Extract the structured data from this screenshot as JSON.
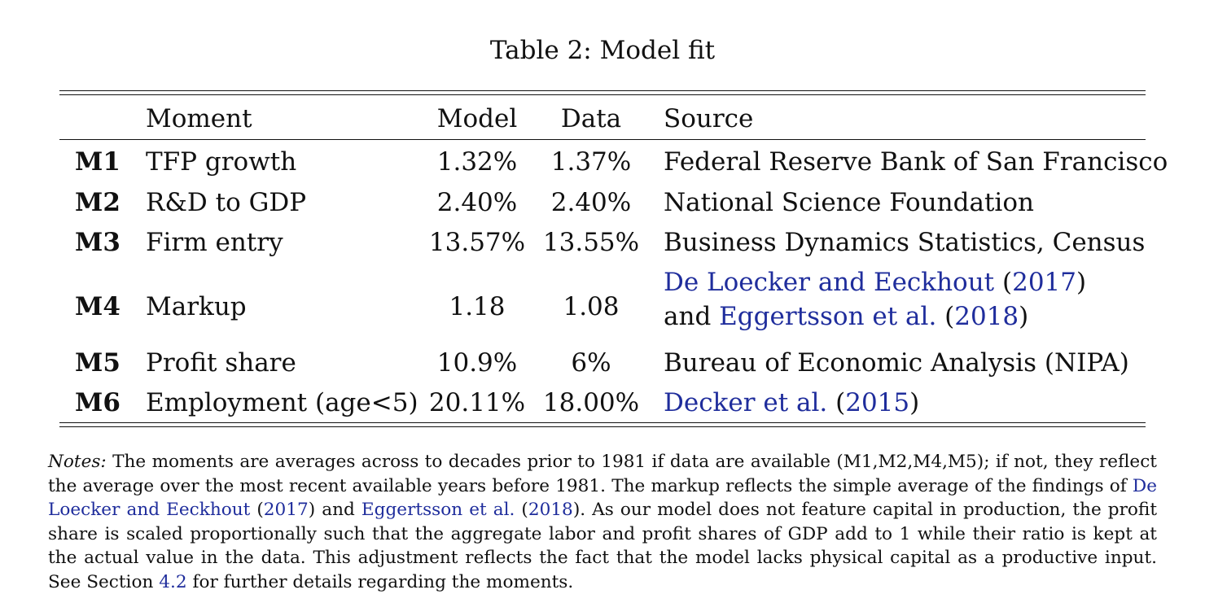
{
  "caption": "Table 2: Model fit",
  "headers": {
    "moment": "Moment",
    "model": "Model",
    "data": "Data",
    "source": "Source"
  },
  "rows": [
    {
      "id": "M1",
      "moment": "TFP growth",
      "model": "1.32%",
      "data": "1.37%",
      "source": "Federal Reserve Bank of San Francisco"
    },
    {
      "id": "M2",
      "moment": "R&D to GDP",
      "model": "2.40%",
      "data": "2.40%",
      "source": "National Science Foundation"
    },
    {
      "id": "M3",
      "moment": "Firm entry",
      "model": "13.57%",
      "data": "13.55%",
      "source": "Business Dynamics Statistics, Census"
    },
    {
      "id": "M4",
      "moment": "Markup",
      "model": "1.18",
      "data": "1.08",
      "source_line1": {
        "authors": "De Loecker and Eeckhout",
        "open": " (",
        "year": "2017",
        "close": ")"
      },
      "source_line2": {
        "prefix": "and ",
        "authors": "Eggertsson et al.",
        "open": " (",
        "year": "2018",
        "close": ")"
      }
    },
    {
      "id": "M5",
      "moment": "Profit share",
      "model": "10.9%",
      "data": "6%",
      "source": "Bureau of Economic Analysis (NIPA)"
    },
    {
      "id": "M6",
      "moment": "Employment (age<5)",
      "model": "20.11%",
      "data": "18.00%",
      "source_cite": {
        "authors": "Decker et al.",
        "open": " (",
        "year": "2015",
        "close": ")"
      }
    }
  ],
  "notes": {
    "label": "Notes:",
    "t1": " The moments are averages across to decades prior to 1981 if data are available (M1,M2,M4,M5); if not, they reflect the average over the most recent available years before 1981. The markup reflects the simple average of the findings of ",
    "c1": "De Loecker and Eeckhout",
    "o1": " (",
    "y1": "2017",
    "t2": ") and ",
    "c2": "Eggertsson et al.",
    "o2": " (",
    "y2": "2018",
    "t3": "). As our model does not feature capital in production, the profit share is scaled proportionally such that the aggregate labor and profit shares of GDP add to 1 while their ratio is kept at the actual value in the data. This adjustment reflects the fact that the model lacks physical capital as a productive input. See Section ",
    "sec": "4.2",
    "t4": " for further details regarding the moments."
  },
  "colors": {
    "text": "#111111",
    "citation": "#1f2d9c"
  }
}
